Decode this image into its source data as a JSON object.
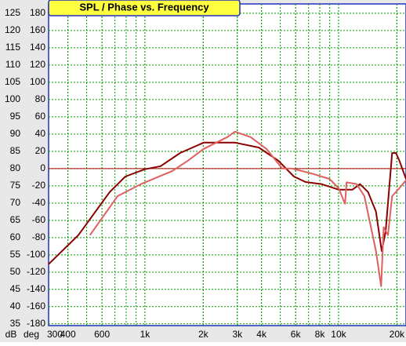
{
  "chart_data": {
    "type": "line",
    "title": "SPL / Phase vs. Frequency",
    "ylabel": "dB",
    "y2label": "deg",
    "xscale": "log",
    "xlim": [
      318,
      22300
    ],
    "xticks": [
      300,
      400,
      600,
      {
        "value": 1000,
        "label": "1k"
      },
      {
        "value": 2000,
        "label": "2k"
      },
      {
        "value": 3000,
        "label": "3k"
      },
      {
        "value": 4000,
        "label": "4k"
      },
      {
        "value": 6000,
        "label": "6k"
      },
      {
        "value": 8000,
        "label": "8k"
      },
      {
        "value": 10000,
        "label": "10k"
      },
      {
        "value": 20000,
        "label": "20k"
      }
    ],
    "ylim": [
      34.5,
      127.7
    ],
    "yticks": [
      35,
      40,
      45,
      50,
      55,
      60,
      65,
      70,
      75,
      80,
      85,
      90,
      95,
      100,
      105,
      110,
      115,
      120,
      125
    ],
    "y2lim": [
      -182,
      190.8
    ],
    "y2ticks": [
      -180,
      -160,
      -140,
      -120,
      -100,
      -80,
      -60,
      -40,
      -20,
      0,
      20,
      40,
      60,
      80,
      100,
      120,
      140,
      160,
      180
    ],
    "grid": true,
    "grid_color": "#00a000",
    "hline": 80,
    "hline_color": "#b00000",
    "series": [
      {
        "color": "#8b0000",
        "x": [
          318,
          453,
          657,
          792,
          1000,
          1205,
          1520,
          2010,
          2920,
          3870,
          4880,
          5880,
          6760,
          8140,
          10000,
          11800,
          12900,
          14200,
          15600,
          16700,
          17500,
          18900,
          19800,
          20600,
          22300
        ],
        "values": [
          52.3,
          60.7,
          73.2,
          77.7,
          79.8,
          80.7,
          84.5,
          87.5,
          87.5,
          86.1,
          82.3,
          77.7,
          76.1,
          75.5,
          73.9,
          73.9,
          75.5,
          73.2,
          67.5,
          56.1,
          61.8,
          84.5,
          84.5,
          82.3,
          77
        ]
      },
      {
        "color": "#e06060",
        "x": [
          520,
          722,
          954,
          1385,
          1670,
          2010,
          2660,
          2920,
          3520,
          4240,
          5120,
          5720,
          6450,
          7440,
          8980,
          10000,
          10800,
          11000,
          12400,
          13600,
          15600,
          16600,
          17100,
          18000,
          18900,
          20600,
          22300
        ],
        "values": [
          60.7,
          72,
          75.5,
          79.3,
          82.3,
          85.7,
          89.1,
          90.7,
          89.1,
          85.7,
          80,
          80,
          79.3,
          78.4,
          77,
          74.3,
          69.8,
          76,
          75.5,
          72,
          56.1,
          45.9,
          63,
          60.7,
          72,
          74.3,
          76.6
        ]
      }
    ]
  }
}
